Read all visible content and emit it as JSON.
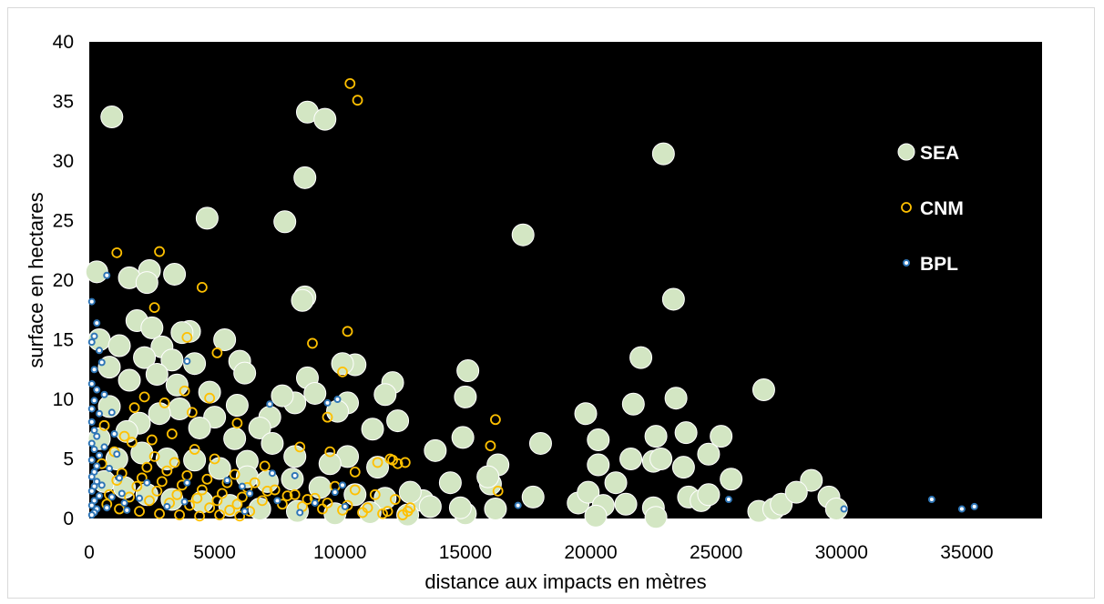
{
  "chart_data": {
    "type": "scatter",
    "title": "",
    "xlabel": "distance aux impacts  en mètres",
    "ylabel": "surface en hectares",
    "xlim": [
      0,
      38000
    ],
    "ylim": [
      0,
      40
    ],
    "x_ticks": [
      "0",
      "5000",
      "10000",
      "15000",
      "20000",
      "25000",
      "30000",
      "35000"
    ],
    "y_ticks": [
      "0",
      "5",
      "10",
      "15",
      "20",
      "25",
      "30",
      "35",
      "40"
    ],
    "plot_background": "#000000",
    "grid": false,
    "legend_position": "right",
    "series": [
      {
        "name": "SEA",
        "color": "#d3e6c3",
        "marker": "large-filled-circle",
        "points": [
          [
            900,
            33.7
          ],
          [
            8700,
            34.1
          ],
          [
            9400,
            33.5
          ],
          [
            8600,
            28.6
          ],
          [
            4700,
            25.2
          ],
          [
            7800,
            24.9
          ],
          [
            17300,
            23.8
          ],
          [
            22900,
            30.6
          ],
          [
            300,
            20.7
          ],
          [
            2400,
            20.8
          ],
          [
            3400,
            20.5
          ],
          [
            1600,
            20.2
          ],
          [
            2300,
            19.8
          ],
          [
            8600,
            18.6
          ],
          [
            8500,
            18.3
          ],
          [
            23300,
            18.4
          ],
          [
            1900,
            16.6
          ],
          [
            2500,
            16.0
          ],
          [
            4000,
            15.7
          ],
          [
            3700,
            15.6
          ],
          [
            5400,
            15.0
          ],
          [
            400,
            15.0
          ],
          [
            2900,
            14.4
          ],
          [
            1200,
            14.5
          ],
          [
            6000,
            13.2
          ],
          [
            2200,
            13.5
          ],
          [
            4200,
            13.0
          ],
          [
            3300,
            13.3
          ],
          [
            8700,
            11.8
          ],
          [
            6200,
            12.2
          ],
          [
            10600,
            12.9
          ],
          [
            10100,
            13.0
          ],
          [
            15100,
            12.4
          ],
          [
            22000,
            13.5
          ],
          [
            26900,
            10.8
          ],
          [
            23400,
            10.1
          ],
          [
            21700,
            9.6
          ],
          [
            19800,
            8.8
          ],
          [
            12100,
            11.4
          ],
          [
            11800,
            10.4
          ],
          [
            15000,
            10.2
          ],
          [
            10300,
            9.7
          ],
          [
            9900,
            9.0
          ],
          [
            8200,
            9.7
          ],
          [
            7200,
            8.5
          ],
          [
            6800,
            7.6
          ],
          [
            12300,
            8.2
          ],
          [
            11300,
            7.5
          ],
          [
            13800,
            5.7
          ],
          [
            14900,
            6.8
          ],
          [
            18000,
            6.3
          ],
          [
            20300,
            6.6
          ],
          [
            22600,
            6.9
          ],
          [
            23800,
            7.2
          ],
          [
            25200,
            6.9
          ],
          [
            20300,
            4.5
          ],
          [
            21600,
            5.0
          ],
          [
            22500,
            4.8
          ],
          [
            22800,
            5.0
          ],
          [
            23700,
            4.3
          ],
          [
            24700,
            5.4
          ],
          [
            16300,
            4.5
          ],
          [
            21000,
            3.0
          ],
          [
            25600,
            3.3
          ],
          [
            28800,
            3.2
          ],
          [
            16000,
            2.9
          ],
          [
            14400,
            3.0
          ],
          [
            15900,
            3.5
          ],
          [
            17700,
            1.8
          ],
          [
            19500,
            1.3
          ],
          [
            19900,
            2.2
          ],
          [
            20500,
            1.1
          ],
          [
            21400,
            1.2
          ],
          [
            22500,
            0.9
          ],
          [
            23900,
            1.8
          ],
          [
            24400,
            1.5
          ],
          [
            24700,
            2.0
          ],
          [
            26700,
            0.6
          ],
          [
            27300,
            0.8
          ],
          [
            27600,
            1.2
          ],
          [
            28200,
            2.2
          ],
          [
            29500,
            1.8
          ],
          [
            29800,
            0.8
          ],
          [
            20200,
            0.2
          ],
          [
            22600,
            0.1
          ],
          [
            16200,
            0.8
          ],
          [
            15000,
            0.4
          ],
          [
            13300,
            1.5
          ],
          [
            12800,
            2.2
          ],
          [
            11500,
            4.3
          ],
          [
            10300,
            5.2
          ],
          [
            9600,
            4.6
          ],
          [
            8200,
            5.2
          ],
          [
            7300,
            6.3
          ],
          [
            6300,
            4.8
          ],
          [
            5800,
            6.7
          ],
          [
            5000,
            8.5
          ],
          [
            4400,
            7.6
          ],
          [
            3600,
            9.2
          ],
          [
            2800,
            8.8
          ],
          [
            2000,
            8.0
          ],
          [
            1500,
            7.3
          ],
          [
            800,
            9.4
          ],
          [
            400,
            6.7
          ],
          [
            1100,
            5.0
          ],
          [
            2100,
            5.5
          ],
          [
            3100,
            5.0
          ],
          [
            4200,
            4.9
          ],
          [
            5200,
            4.2
          ],
          [
            6300,
            3.5
          ],
          [
            7100,
            3.1
          ],
          [
            8100,
            3.3
          ],
          [
            9200,
            2.6
          ],
          [
            10600,
            2.0
          ],
          [
            11800,
            1.7
          ],
          [
            13600,
            1.0
          ],
          [
            14800,
            0.9
          ],
          [
            600,
            3.1
          ],
          [
            1400,
            2.6
          ],
          [
            2300,
            2.0
          ],
          [
            3300,
            1.6
          ],
          [
            4500,
            1.4
          ],
          [
            5600,
            1.1
          ],
          [
            6800,
            0.8
          ],
          [
            8300,
            0.6
          ],
          [
            9800,
            0.4
          ],
          [
            11200,
            0.5
          ],
          [
            12700,
            0.3
          ],
          [
            1600,
            11.6
          ],
          [
            2700,
            12.1
          ],
          [
            3500,
            11.2
          ],
          [
            4800,
            10.6
          ],
          [
            5900,
            9.5
          ],
          [
            7700,
            10.3
          ],
          [
            9000,
            10.5
          ],
          [
            800,
            12.7
          ]
        ]
      },
      {
        "name": "CNM",
        "color": "#ffc000",
        "marker": "hollow-circle",
        "points": [
          [
            10400,
            36.5
          ],
          [
            10700,
            35.1
          ],
          [
            1100,
            22.3
          ],
          [
            2800,
            22.4
          ],
          [
            4500,
            19.4
          ],
          [
            2600,
            17.7
          ],
          [
            10300,
            15.7
          ],
          [
            8900,
            14.7
          ],
          [
            3900,
            15.2
          ],
          [
            5100,
            13.9
          ],
          [
            4800,
            10.1
          ],
          [
            3800,
            10.7
          ],
          [
            10100,
            12.3
          ],
          [
            9500,
            8.5
          ],
          [
            12000,
            5.0
          ],
          [
            12300,
            4.6
          ],
          [
            16200,
            8.3
          ],
          [
            16000,
            6.1
          ],
          [
            16300,
            2.3
          ],
          [
            11500,
            4.7
          ],
          [
            12600,
            4.7
          ],
          [
            12100,
            4.9
          ],
          [
            10600,
            3.9
          ],
          [
            9600,
            5.6
          ],
          [
            8400,
            6.0
          ],
          [
            7000,
            4.4
          ],
          [
            5900,
            8.0
          ],
          [
            3300,
            7.1
          ],
          [
            2500,
            6.6
          ],
          [
            1700,
            6.4
          ],
          [
            1000,
            5.6
          ],
          [
            500,
            4.6
          ],
          [
            1300,
            3.8
          ],
          [
            2100,
            3.4
          ],
          [
            2900,
            3.1
          ],
          [
            3700,
            2.8
          ],
          [
            4500,
            2.4
          ],
          [
            5300,
            2.1
          ],
          [
            6100,
            1.8
          ],
          [
            6900,
            1.5
          ],
          [
            7700,
            1.2
          ],
          [
            8500,
            1.0
          ],
          [
            9300,
            0.8
          ],
          [
            10100,
            0.7
          ],
          [
            10900,
            0.5
          ],
          [
            11700,
            0.4
          ],
          [
            12500,
            0.3
          ],
          [
            12800,
            0.9
          ],
          [
            800,
            2.0
          ],
          [
            1600,
            1.8
          ],
          [
            2400,
            1.5
          ],
          [
            3200,
            1.3
          ],
          [
            4000,
            1.1
          ],
          [
            4800,
            0.9
          ],
          [
            5600,
            0.7
          ],
          [
            6400,
            0.6
          ],
          [
            1200,
            0.8
          ],
          [
            2000,
            0.6
          ],
          [
            2800,
            0.4
          ],
          [
            3600,
            0.3
          ],
          [
            4400,
            0.2
          ],
          [
            5200,
            0.3
          ],
          [
            6000,
            0.2
          ],
          [
            700,
            1.2
          ],
          [
            1900,
            2.7
          ],
          [
            2700,
            2.3
          ],
          [
            3500,
            2.0
          ],
          [
            4300,
            1.7
          ],
          [
            5100,
            1.5
          ],
          [
            5900,
            1.2
          ],
          [
            1100,
            3.2
          ],
          [
            2300,
            4.3
          ],
          [
            3100,
            4.0
          ],
          [
            3900,
            3.6
          ],
          [
            4700,
            3.3
          ],
          [
            5500,
            3.0
          ],
          [
            6300,
            2.6
          ],
          [
            7100,
            2.3
          ],
          [
            7900,
            1.9
          ],
          [
            8700,
            1.6
          ],
          [
            9500,
            1.3
          ],
          [
            10300,
            1.1
          ],
          [
            11100,
            0.9
          ],
          [
            11900,
            0.6
          ],
          [
            1800,
            9.3
          ],
          [
            2200,
            10.2
          ],
          [
            3000,
            9.7
          ],
          [
            4100,
            8.9
          ],
          [
            600,
            7.8
          ],
          [
            1400,
            6.9
          ],
          [
            2600,
            5.2
          ],
          [
            3400,
            4.7
          ],
          [
            4200,
            5.8
          ],
          [
            5000,
            5.0
          ],
          [
            5800,
            3.7
          ],
          [
            6600,
            3.0
          ],
          [
            7400,
            2.4
          ],
          [
            8200,
            2.0
          ],
          [
            9000,
            1.7
          ],
          [
            9800,
            2.7
          ],
          [
            10600,
            2.4
          ],
          [
            11400,
            2.0
          ],
          [
            12200,
            1.6
          ],
          [
            12700,
            0.6
          ]
        ]
      },
      {
        "name": "BPL",
        "color": "#2e75b6",
        "marker": "small-ring",
        "points": [
          [
            700,
            20.4
          ],
          [
            100,
            18.2
          ],
          [
            300,
            16.4
          ],
          [
            200,
            15.3
          ],
          [
            100,
            14.8
          ],
          [
            400,
            14.1
          ],
          [
            500,
            13.1
          ],
          [
            200,
            12.5
          ],
          [
            100,
            11.3
          ],
          [
            300,
            10.8
          ],
          [
            600,
            10.4
          ],
          [
            200,
            9.9
          ],
          [
            100,
            9.2
          ],
          [
            400,
            8.8
          ],
          [
            100,
            8.1
          ],
          [
            200,
            7.4
          ],
          [
            300,
            6.9
          ],
          [
            100,
            6.3
          ],
          [
            200,
            5.8
          ],
          [
            400,
            5.3
          ],
          [
            100,
            4.9
          ],
          [
            300,
            4.4
          ],
          [
            200,
            3.9
          ],
          [
            100,
            3.5
          ],
          [
            300,
            3.1
          ],
          [
            200,
            2.7
          ],
          [
            100,
            2.3
          ],
          [
            400,
            1.9
          ],
          [
            200,
            1.5
          ],
          [
            100,
            1.1
          ],
          [
            300,
            0.8
          ],
          [
            200,
            0.5
          ],
          [
            100,
            0.3
          ],
          [
            900,
            8.9
          ],
          [
            1000,
            7.1
          ],
          [
            1100,
            5.4
          ],
          [
            1200,
            3.4
          ],
          [
            1300,
            2.1
          ],
          [
            1400,
            1.3
          ],
          [
            1500,
            0.7
          ],
          [
            2300,
            3.0
          ],
          [
            2000,
            1.7
          ],
          [
            3100,
            1.0
          ],
          [
            3900,
            13.2
          ],
          [
            3900,
            3.0
          ],
          [
            3800,
            1.4
          ],
          [
            5500,
            3.2
          ],
          [
            6100,
            2.7
          ],
          [
            6400,
            2.1
          ],
          [
            6200,
            0.6
          ],
          [
            7200,
            9.6
          ],
          [
            7300,
            3.8
          ],
          [
            7500,
            1.5
          ],
          [
            8200,
            3.6
          ],
          [
            8400,
            0.5
          ],
          [
            9000,
            1.3
          ],
          [
            9500,
            9.7
          ],
          [
            9900,
            10.0
          ],
          [
            9800,
            2.2
          ],
          [
            10200,
            1.0
          ],
          [
            10100,
            2.8
          ],
          [
            17100,
            1.1
          ],
          [
            25500,
            1.6
          ],
          [
            30100,
            0.8
          ],
          [
            33600,
            1.6
          ],
          [
            34800,
            0.8
          ],
          [
            35300,
            1.0
          ],
          [
            500,
            2.8
          ],
          [
            800,
            4.2
          ],
          [
            600,
            6.0
          ],
          [
            700,
            0.9
          ],
          [
            900,
            1.8
          ]
        ]
      }
    ]
  }
}
